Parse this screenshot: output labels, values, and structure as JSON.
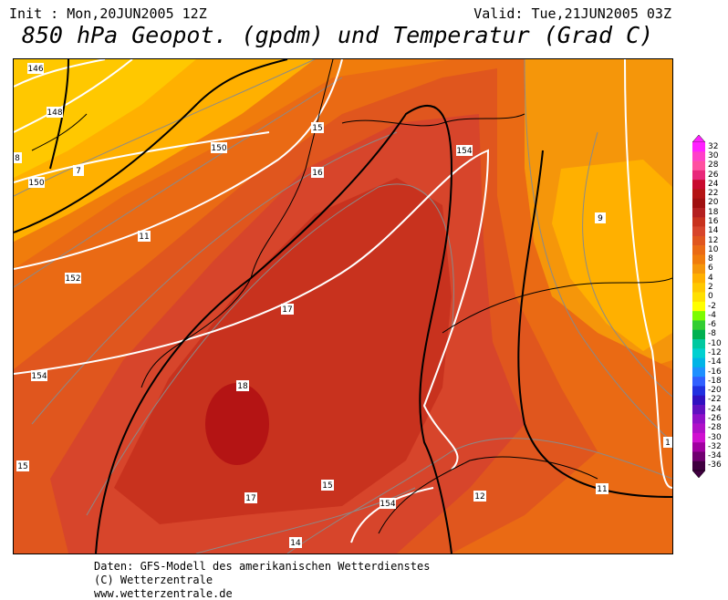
{
  "header": {
    "init": "Init : Mon,20JUN2005 12Z",
    "valid": "Valid: Tue,21JUN2005 03Z",
    "title": "850 hPa Geopot. (gpdm) und Temperatur (Grad C)"
  },
  "legend": {
    "ticks": [
      "32",
      "30",
      "28",
      "26",
      "24",
      "22",
      "20",
      "18",
      "16",
      "14",
      "12",
      "10",
      "8",
      "6",
      "4",
      "2",
      "0",
      "-2",
      "-4",
      "-6",
      "-8",
      "-10",
      "-12",
      "-14",
      "-16",
      "-18",
      "-20",
      "-22",
      "-24",
      "-26",
      "-28",
      "-30",
      "-32",
      "-34",
      "-36"
    ],
    "colors": [
      "#ff20ff",
      "#ff40c8",
      "#ff50a0",
      "#e8287a",
      "#c80a2e",
      "#b41414",
      "#a01010",
      "#b42020",
      "#c8321e",
      "#d7452b",
      "#e0561e",
      "#ea6a14",
      "#f07c0c",
      "#f5960a",
      "#ffb000",
      "#ffc800",
      "#ffe000",
      "#ffff00",
      "#7cfc00",
      "#32cd32",
      "#00b050",
      "#00c8a0",
      "#00d0d0",
      "#00b4e6",
      "#1e90ff",
      "#3060ff",
      "#2030e0",
      "#3010c0",
      "#6010c0",
      "#9010c8",
      "#b010c8",
      "#d010d0",
      "#a000a0",
      "#700070",
      "#400040"
    ]
  },
  "map": {
    "geopotential_labels": [
      "146",
      "148",
      "150",
      "150",
      "152",
      "154",
      "154",
      "154"
    ],
    "temperature_labels": [
      "15",
      "16",
      "17",
      "18",
      "17",
      "15",
      "15",
      "14",
      "12",
      "11",
      "11",
      "9",
      "7",
      "8",
      "1"
    ]
  },
  "footer": {
    "line1": "Daten: GFS-Modell des amerikanischen Wetterdienstes",
    "line2": "(C) Wetterzentrale",
    "line3": "www.wetterzentrale.de"
  }
}
